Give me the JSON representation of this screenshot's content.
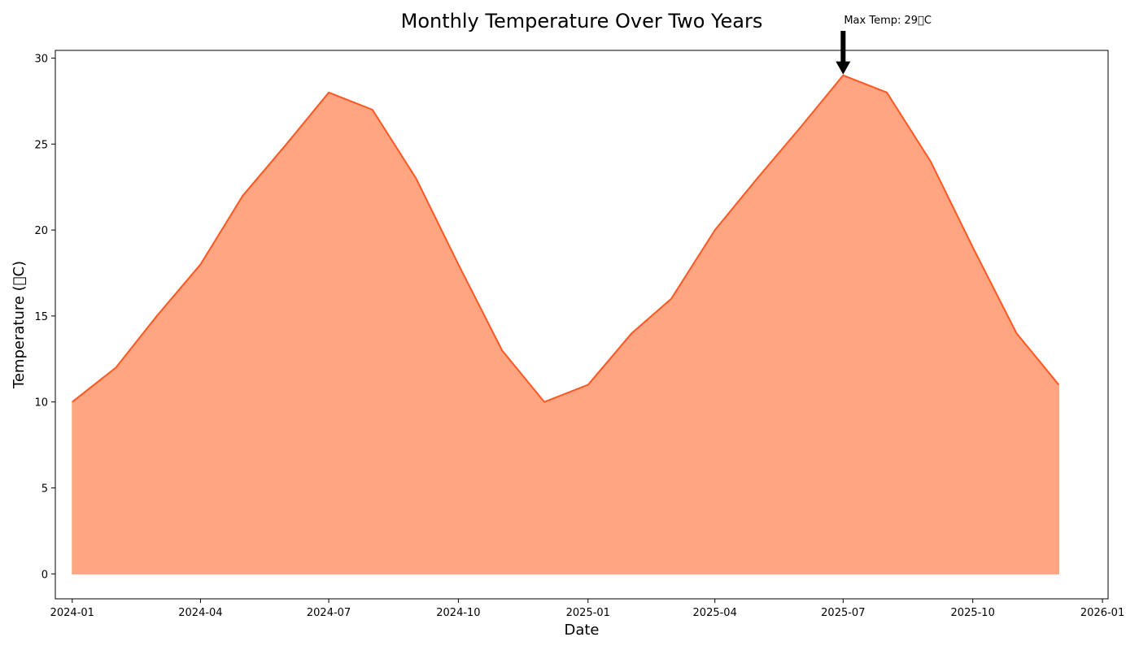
{
  "chart_data": {
    "type": "area",
    "title": "Monthly Temperature Over Two Years",
    "xlabel": "Date",
    "ylabel": "Temperature (\u0000C)",
    "x": [
      "2024-01",
      "2024-02",
      "2024-03",
      "2024-04",
      "2024-05",
      "2024-06",
      "2024-07",
      "2024-08",
      "2024-09",
      "2024-10",
      "2024-11",
      "2024-12",
      "2025-01",
      "2025-02",
      "2025-03",
      "2025-04",
      "2025-05",
      "2025-06",
      "2025-07",
      "2025-08",
      "2025-09",
      "2025-10",
      "2025-11",
      "2025-12"
    ],
    "y": [
      10,
      12,
      15,
      18,
      22,
      25,
      28,
      27,
      23,
      18,
      13,
      10,
      11,
      14,
      16,
      20,
      23,
      26,
      29,
      28,
      24,
      19,
      14,
      11
    ],
    "xlim": [
      "2023-12-20",
      "2026-01-05"
    ],
    "ylim": [
      -1.45,
      30.45
    ],
    "xticks": [
      "2024-01",
      "2024-04",
      "2024-07",
      "2024-10",
      "2025-01",
      "2025-04",
      "2025-07",
      "2025-10",
      "2026-01"
    ],
    "yticks": [
      0,
      5,
      10,
      15,
      20,
      25,
      30
    ],
    "grid": false,
    "fill_color": "#FFA07A",
    "line_color": "#FF5722",
    "annotation": {
      "text": "Max Temp: 29\u0000C",
      "x": "2025-07",
      "y": 29
    }
  }
}
